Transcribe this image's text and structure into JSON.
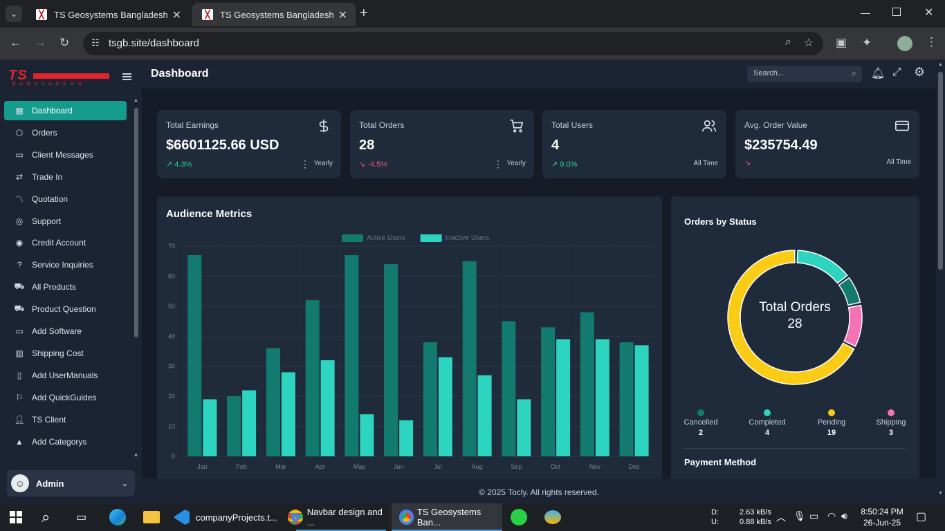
{
  "browser": {
    "tabs": [
      {
        "title": "TS Geosystems Bangladesh"
      },
      {
        "title": "TS Geosystems Bangladesh"
      }
    ],
    "url": "tsgb.site/dashboard"
  },
  "sidebar": {
    "logo_text": "TS",
    "logo_sub": "B A N G L A D E S H",
    "items": [
      {
        "label": "Dashboard",
        "icon": "grid-icon"
      },
      {
        "label": "Orders",
        "icon": "box-icon"
      },
      {
        "label": "Client Messages",
        "icon": "message-icon"
      },
      {
        "label": "Trade In",
        "icon": "swap-icon"
      },
      {
        "label": "Quotation",
        "icon": "chart-line-icon"
      },
      {
        "label": "Support",
        "icon": "lifebuoy-icon"
      },
      {
        "label": "Credit Account",
        "icon": "target-icon"
      },
      {
        "label": "Service Inquiries",
        "icon": "help-icon"
      },
      {
        "label": "All Products",
        "icon": "cart-icon"
      },
      {
        "label": "Product Question",
        "icon": "cart-icon"
      },
      {
        "label": "Add Software",
        "icon": "monitor-icon"
      },
      {
        "label": "Shipping Cost",
        "icon": "bars-icon"
      },
      {
        "label": "Add UserManuals",
        "icon": "book-icon"
      },
      {
        "label": "Add QuickGuides",
        "icon": "bookmark-icon"
      },
      {
        "label": "TS Client",
        "icon": "user-icon"
      },
      {
        "label": "Add Categorys",
        "icon": "shapes-icon"
      }
    ],
    "user": {
      "name": "Admin"
    }
  },
  "header": {
    "title": "Dashboard",
    "search_placeholder": "Search..."
  },
  "stats": [
    {
      "label": "Total Earnings",
      "value": "$6601125.66 USD",
      "change": "4.3%",
      "dir": "up",
      "period": "Yearly",
      "icon": "dollar-icon"
    },
    {
      "label": "Total Orders",
      "value": "28",
      "change": "-4.5%",
      "dir": "down",
      "period": "Yearly",
      "icon": "cart-icon"
    },
    {
      "label": "Total Users",
      "value": "4",
      "change": "9.0%",
      "dir": "up",
      "period": "All Time",
      "icon": "users-icon"
    },
    {
      "label": "Avg. Order Value",
      "value": "$235754.49",
      "change": "",
      "dir": "down",
      "period": "All Time",
      "icon": "card-icon"
    }
  ],
  "audience": {
    "title": "Audience Metrics",
    "chart_data": {
      "type": "bar",
      "categories": [
        "Jan",
        "Feb",
        "Mar",
        "Apr",
        "May",
        "Jun",
        "Jul",
        "Aug",
        "Sep",
        "Oct",
        "Nov",
        "Dec"
      ],
      "series": [
        {
          "name": "Active Users",
          "color": "#127a6e",
          "values": [
            67,
            20,
            36,
            52,
            67,
            64,
            38,
            65,
            45,
            43,
            48,
            38
          ]
        },
        {
          "name": "Inactive Users",
          "color": "#2dd4bf",
          "values": [
            19,
            22,
            28,
            32,
            14,
            12,
            33,
            27,
            19,
            39,
            39,
            37
          ]
        }
      ],
      "ylim": [
        0,
        70
      ],
      "yticks": [
        0,
        10,
        20,
        30,
        40,
        50,
        60,
        70
      ],
      "legend": "top"
    }
  },
  "orders_status": {
    "title": "Orders by Status",
    "center_label": "Total Orders",
    "center_value": "28",
    "chart_data": {
      "type": "pie",
      "labels": [
        "Cancelled",
        "Completed",
        "Pending",
        "Shipping"
      ],
      "values": [
        2,
        4,
        19,
        3
      ],
      "colors": [
        "#127a6e",
        "#2dd4bf",
        "#facc15",
        "#f472b6"
      ]
    },
    "payment_title": "Payment Method"
  },
  "footer": "© 2025 Tocly. All rights reserved.",
  "taskbar": {
    "apps": [
      "companyProjects.t...",
      "Navbar design and ...",
      "TS Geosystems Ban..."
    ],
    "net_d_label": "D:",
    "net_u_label": "U:",
    "net_down": "2.63 kB/s",
    "net_up": "0.88 kB/s",
    "time": "8:50:24 PM",
    "date": "26-Jun-25"
  }
}
